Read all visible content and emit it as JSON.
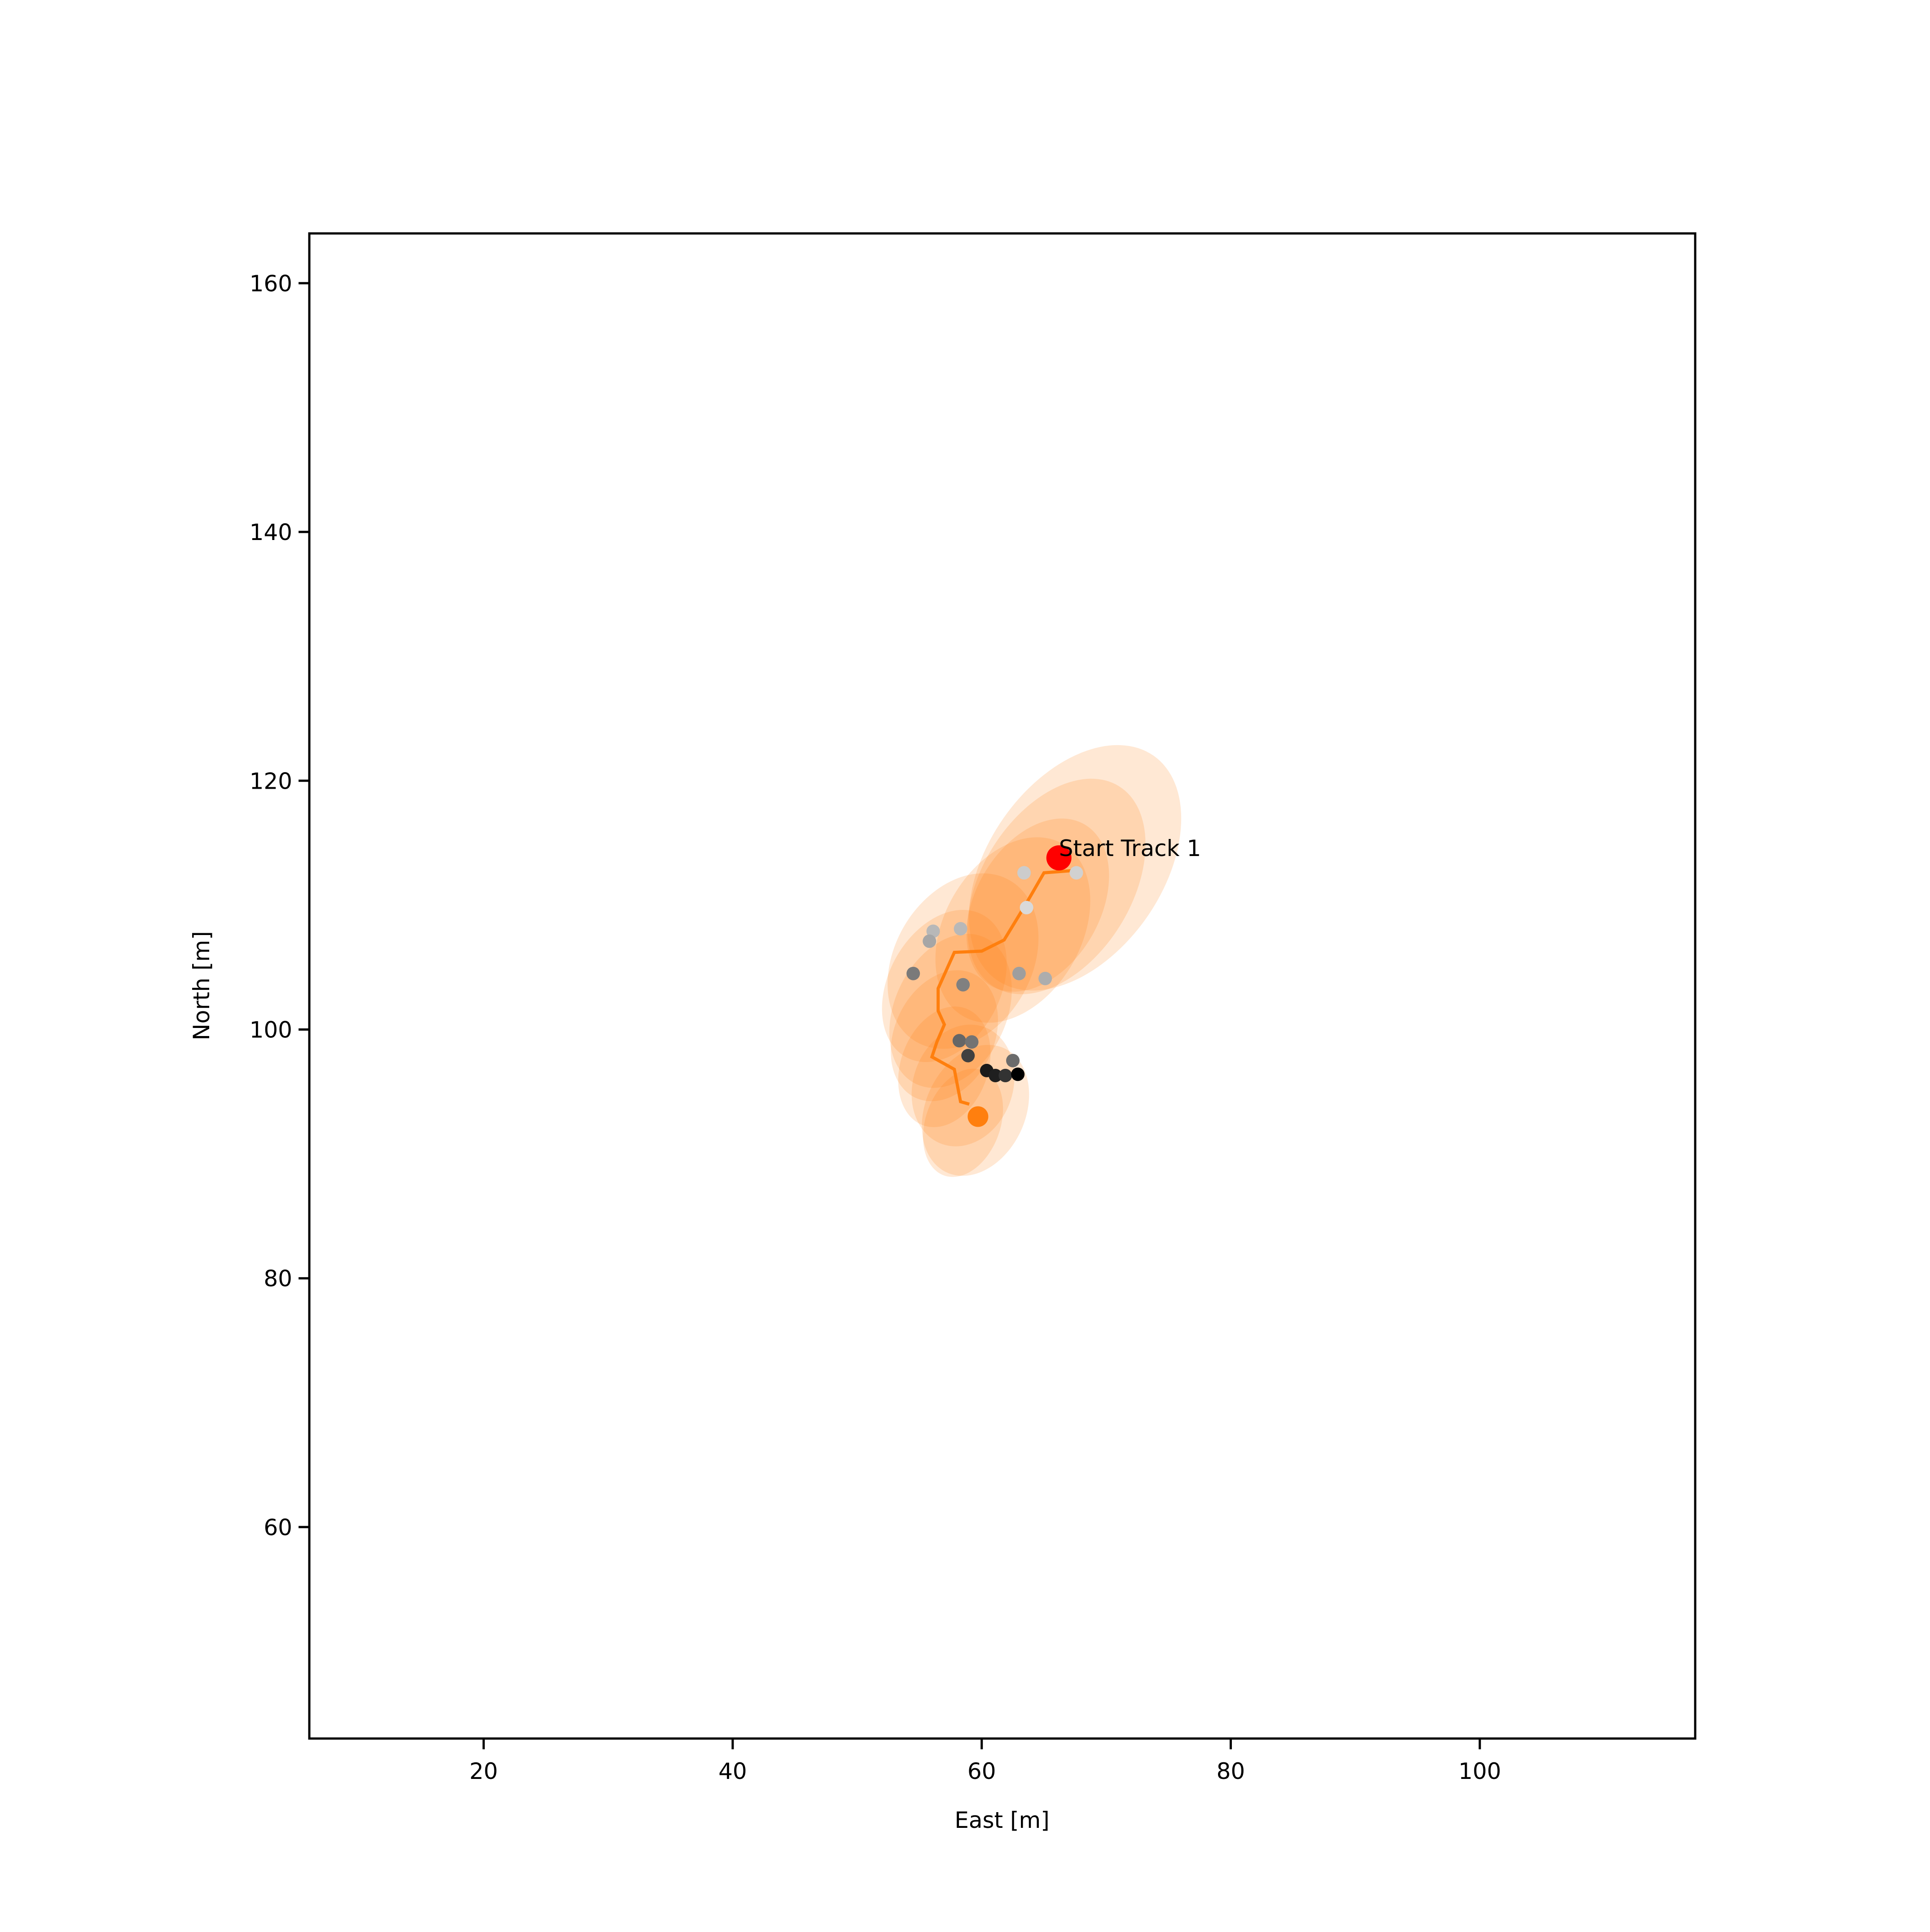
{
  "chart_data": {
    "type": "scatter",
    "title": "",
    "xlabel": "East [m]",
    "ylabel": "North [m]",
    "xlim": [
      6,
      117.3
    ],
    "ylim": [
      43,
      164
    ],
    "xticks": [
      20,
      40,
      60,
      80,
      100
    ],
    "yticks": [
      60,
      80,
      100,
      120,
      140,
      160
    ],
    "grid": false,
    "legend": false,
    "colors": {
      "track": "#ff7f0e",
      "start": "#ff0000",
      "end": "#ff7f0e",
      "covariance": "#ff7f0e",
      "measurement_gray": "#808080",
      "axes": "#000000"
    },
    "track_line": {
      "x": [
        67.6,
        65.0,
        63.5,
        61.8,
        60.0,
        57.8,
        56.5,
        56.5,
        57.0,
        56.4,
        56.0,
        57.8,
        58.3,
        59.0
      ],
      "y": [
        112.8,
        112.6,
        110.0,
        107.2,
        106.3,
        106.2,
        103.3,
        101.5,
        100.4,
        99.0,
        97.8,
        96.8,
        94.2,
        94.0
      ]
    },
    "start_point": {
      "x": 66.2,
      "y": 113.8,
      "label": "Start Track 1"
    },
    "end_point": {
      "x": 59.7,
      "y": 93.0
    },
    "measurements": [
      {
        "x": 63.4,
        "y": 112.6,
        "gray": 0.8
      },
      {
        "x": 67.6,
        "y": 112.6,
        "gray": 0.82
      },
      {
        "x": 63.6,
        "y": 109.8,
        "gray": 0.85
      },
      {
        "x": 56.1,
        "y": 107.9,
        "gray": 0.72
      },
      {
        "x": 58.3,
        "y": 108.1,
        "gray": 0.72
      },
      {
        "x": 55.8,
        "y": 107.1,
        "gray": 0.65
      },
      {
        "x": 63.0,
        "y": 104.5,
        "gray": 0.62
      },
      {
        "x": 65.1,
        "y": 104.1,
        "gray": 0.68
      },
      {
        "x": 54.5,
        "y": 104.5,
        "gray": 0.48
      },
      {
        "x": 58.5,
        "y": 103.6,
        "gray": 0.5
      },
      {
        "x": 58.2,
        "y": 99.1,
        "gray": 0.4
      },
      {
        "x": 59.2,
        "y": 99.0,
        "gray": 0.45
      },
      {
        "x": 58.9,
        "y": 97.9,
        "gray": 0.25
      },
      {
        "x": 62.5,
        "y": 97.5,
        "gray": 0.42
      },
      {
        "x": 60.4,
        "y": 96.7,
        "gray": 0.1
      },
      {
        "x": 61.1,
        "y": 96.3,
        "gray": 0.12
      },
      {
        "x": 61.9,
        "y": 96.3,
        "gray": 0.2
      },
      {
        "x": 62.9,
        "y": 96.4,
        "gray": 0.0
      }
    ],
    "covariance_ellipses": [
      {
        "cx": 67.5,
        "cy": 113.0,
        "width": 14,
        "height": 22,
        "angle": 35,
        "opacity": 0.18
      },
      {
        "cx": 66.0,
        "cy": 111.5,
        "width": 12,
        "height": 19,
        "angle": 32,
        "opacity": 0.18
      },
      {
        "cx": 64.5,
        "cy": 110.0,
        "width": 10,
        "height": 15,
        "angle": 30,
        "opacity": 0.18
      },
      {
        "cx": 62.5,
        "cy": 108.0,
        "width": 11,
        "height": 16,
        "angle": 30,
        "opacity": 0.18
      },
      {
        "cx": 58.5,
        "cy": 105.5,
        "width": 11,
        "height": 15,
        "angle": 30,
        "opacity": 0.18
      },
      {
        "cx": 57.0,
        "cy": 103.5,
        "width": 9,
        "height": 13,
        "angle": 28,
        "opacity": 0.18
      },
      {
        "cx": 57.5,
        "cy": 101.5,
        "width": 9,
        "height": 13,
        "angle": 25,
        "opacity": 0.18
      },
      {
        "cx": 57.0,
        "cy": 99.5,
        "width": 8,
        "height": 11,
        "angle": 25,
        "opacity": 0.18
      },
      {
        "cx": 57.0,
        "cy": 97.0,
        "width": 7,
        "height": 10,
        "angle": 20,
        "opacity": 0.18
      },
      {
        "cx": 58.5,
        "cy": 95.5,
        "width": 8,
        "height": 10,
        "angle": 20,
        "opacity": 0.18
      },
      {
        "cx": 59.5,
        "cy": 93.5,
        "width": 8,
        "height": 11,
        "angle": 25,
        "opacity": 0.18
      },
      {
        "cx": 58.5,
        "cy": 92.5,
        "width": 6,
        "height": 9,
        "angle": 20,
        "opacity": 0.18
      }
    ]
  }
}
